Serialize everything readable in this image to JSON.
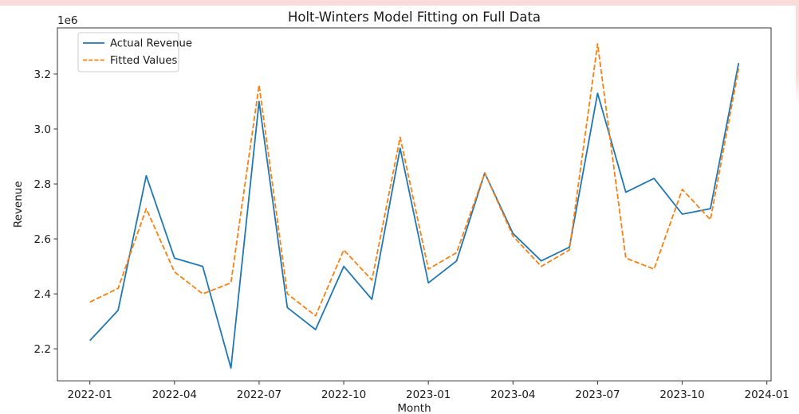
{
  "page": {
    "background": "#ffffff",
    "top_bar_color": "#fbdbd9",
    "right_bar_color": "#fbdbd9"
  },
  "chart_data": {
    "type": "line",
    "title": "Holt-Winters Model Fitting on Full Data",
    "xlabel": "Month",
    "ylabel": "Revenue",
    "y_offset_label": "1e6",
    "grid": false,
    "legend": {
      "position": "upper left"
    },
    "axis_color": "#333333",
    "x": [
      "2022-01",
      "2022-02",
      "2022-03",
      "2022-04",
      "2022-05",
      "2022-06",
      "2022-07",
      "2022-08",
      "2022-09",
      "2022-10",
      "2022-11",
      "2022-12",
      "2023-01",
      "2023-02",
      "2023-03",
      "2023-04",
      "2023-05",
      "2023-06",
      "2023-07",
      "2023-08",
      "2023-09",
      "2023-10",
      "2023-11",
      "2023-12"
    ],
    "series": [
      {
        "name": "Actual Revenue",
        "color": "#1f77b4",
        "style": "solid",
        "values_millions": [
          2.23,
          2.34,
          2.83,
          2.53,
          2.5,
          2.13,
          3.1,
          2.35,
          2.27,
          2.5,
          2.38,
          2.93,
          2.44,
          2.52,
          2.84,
          2.62,
          2.52,
          2.57,
          3.13,
          2.77,
          2.82,
          2.69,
          2.71,
          3.24
        ]
      },
      {
        "name": "Fitted Values",
        "color": "#ff7f0e",
        "style": "dashed",
        "values_millions": [
          2.37,
          2.42,
          2.71,
          2.48,
          2.4,
          2.44,
          3.16,
          2.4,
          2.32,
          2.56,
          2.45,
          2.97,
          2.49,
          2.55,
          2.84,
          2.61,
          2.5,
          2.56,
          3.31,
          2.53,
          2.49,
          2.78,
          2.67,
          3.22
        ]
      }
    ],
    "x_tick_labels": [
      "2022-01",
      "2022-04",
      "2022-07",
      "2022-10",
      "2023-01",
      "2023-04",
      "2023-07",
      "2023-10",
      "2024-01"
    ],
    "x_tick_month_indices": [
      0,
      3,
      6,
      9,
      12,
      15,
      18,
      21,
      24
    ],
    "y_tick_labels": [
      "2.2",
      "2.4",
      "2.6",
      "2.8",
      "3.0",
      "3.2"
    ],
    "y_ticks_millions": [
      2.2,
      2.4,
      2.6,
      2.8,
      3.0,
      3.2
    ],
    "ylim_millions": [
      2.083,
      3.368
    ],
    "xlim_month_index": [
      -1.15,
      24.15
    ]
  }
}
